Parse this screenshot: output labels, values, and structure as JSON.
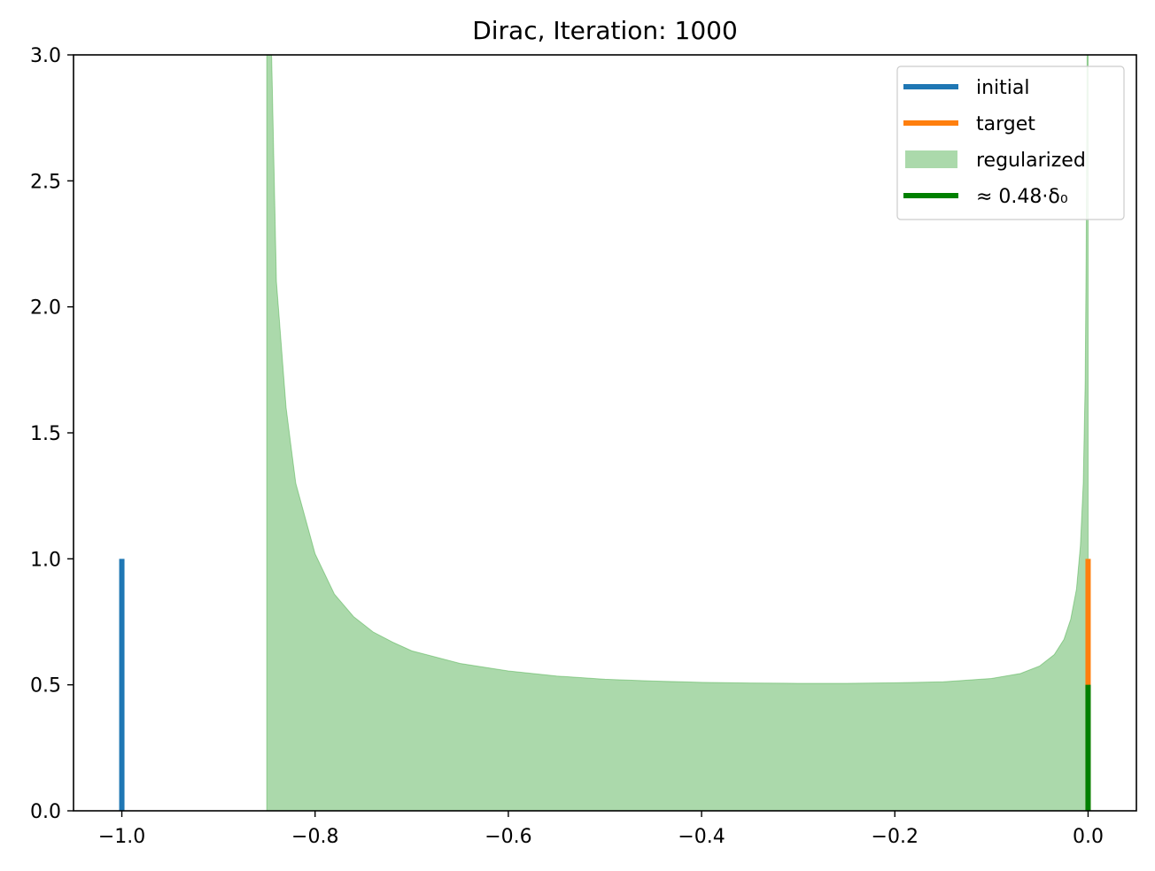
{
  "chart_data": {
    "type": "area",
    "title": "Dirac, Iteration: 1000",
    "xlabel": "",
    "ylabel": "",
    "xlim": [
      -1.05,
      0.05
    ],
    "ylim": [
      0,
      3.0
    ],
    "x_ticks": [
      -1.0,
      -0.8,
      -0.6,
      -0.4,
      -0.2,
      0.0
    ],
    "x_tick_labels": [
      "−1.0",
      "−0.8",
      "−0.6",
      "−0.4",
      "−0.2",
      "0.0"
    ],
    "y_ticks": [
      0.0,
      0.5,
      1.0,
      1.5,
      2.0,
      2.5,
      3.0
    ],
    "y_tick_labels": [
      "0.0",
      "0.5",
      "1.0",
      "1.5",
      "2.0",
      "2.5",
      "3.0"
    ],
    "grid": false,
    "legend_position": "top-right",
    "series": [
      {
        "name": "initial",
        "kind": "vertical-line",
        "color": "#1f77b4",
        "x": -1.0,
        "y_from": 0,
        "y_to": 1.0
      },
      {
        "name": "target",
        "kind": "vertical-line",
        "color": "#ff7f0e",
        "x": 0.0,
        "y_from": 0,
        "y_to": 1.0
      },
      {
        "name": "regularized",
        "kind": "filled-area",
        "color": "#2ca02c",
        "opacity": 0.4,
        "points": [
          [
            -0.85,
            3.0
          ],
          [
            -0.845,
            3.0
          ],
          [
            -0.84,
            2.1
          ],
          [
            -0.83,
            1.6
          ],
          [
            -0.82,
            1.3
          ],
          [
            -0.8,
            1.02
          ],
          [
            -0.78,
            0.86
          ],
          [
            -0.76,
            0.77
          ],
          [
            -0.74,
            0.71
          ],
          [
            -0.72,
            0.67
          ],
          [
            -0.7,
            0.635
          ],
          [
            -0.65,
            0.585
          ],
          [
            -0.6,
            0.555
          ],
          [
            -0.55,
            0.535
          ],
          [
            -0.5,
            0.522
          ],
          [
            -0.45,
            0.515
          ],
          [
            -0.4,
            0.51
          ],
          [
            -0.35,
            0.507
          ],
          [
            -0.3,
            0.506
          ],
          [
            -0.25,
            0.506
          ],
          [
            -0.2,
            0.508
          ],
          [
            -0.15,
            0.512
          ],
          [
            -0.1,
            0.525
          ],
          [
            -0.07,
            0.545
          ],
          [
            -0.05,
            0.575
          ],
          [
            -0.035,
            0.62
          ],
          [
            -0.025,
            0.68
          ],
          [
            -0.018,
            0.76
          ],
          [
            -0.012,
            0.88
          ],
          [
            -0.008,
            1.05
          ],
          [
            -0.005,
            1.3
          ],
          [
            -0.003,
            1.7
          ],
          [
            -0.002,
            2.2
          ],
          [
            -0.001,
            3.0
          ],
          [
            0.0,
            3.0
          ]
        ]
      },
      {
        "name": "≈ 0.48·δ₀",
        "kind": "vertical-line",
        "color": "#008000",
        "x": 0.0,
        "y_from": 0,
        "y_to": 0.5
      }
    ],
    "legend": [
      {
        "label": "initial",
        "style": "line",
        "color": "#1f77b4"
      },
      {
        "label": "target",
        "style": "line",
        "color": "#ff7f0e"
      },
      {
        "label": "regularized",
        "style": "patch",
        "color": "#2ca02c"
      },
      {
        "label": "≈  0.48·δ₀",
        "style": "line",
        "color": "#008000"
      }
    ]
  }
}
